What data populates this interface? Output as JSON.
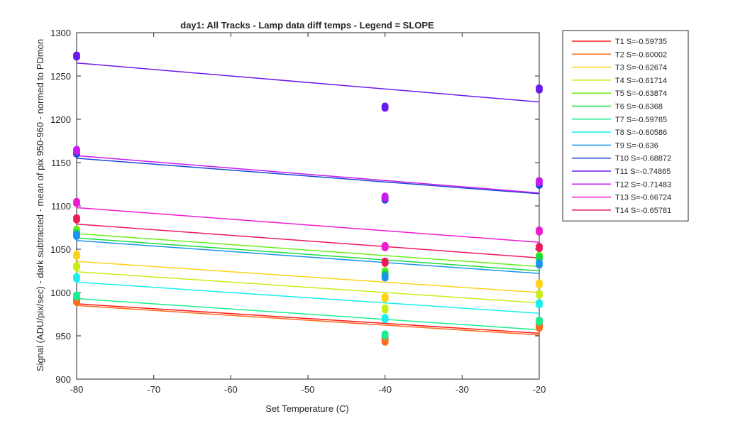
{
  "chart_data": {
    "type": "scatter",
    "title": "day1: All Tracks - Lamp data diff temps - Legend = SLOPE",
    "xlabel": "Set Temperature (C)",
    "ylabel": "Signal (ADU/pix/sec) - dark subtracted - mean of pix 950-960 - normed to PDmon",
    "xlim": [
      -80,
      -20
    ],
    "ylim": [
      900,
      1300
    ],
    "xticks": [
      "-80",
      "-70",
      "-60",
      "-50",
      "-40",
      "-30",
      "-20"
    ],
    "yticks": [
      "900",
      "950",
      "1000",
      "1050",
      "1100",
      "1150",
      "1200",
      "1250",
      "1300"
    ],
    "grid": false,
    "legend_position": "outside-right-top",
    "x": [
      -80,
      -40,
      -20
    ],
    "series": [
      {
        "name": "T1 S=-0.59735",
        "color": "#ff1a1a",
        "values": [
          991,
          947,
          962
        ],
        "fit": [
          987,
          953
        ]
      },
      {
        "name": "T2 S=-0.60002",
        "color": "#ff6a1a",
        "values": [
          990,
          944,
          960
        ],
        "fit": [
          985,
          951
        ]
      },
      {
        "name": "T3 S=-0.62674",
        "color": "#ffd21a",
        "values": [
          1043,
          994,
          1010
        ],
        "fit": [
          1036,
          1000
        ]
      },
      {
        "name": "T4 S=-0.61714",
        "color": "#c8ee1a",
        "values": [
          1030,
          981,
          998
        ],
        "fit": [
          1024,
          988
        ]
      },
      {
        "name": "T5 S=-0.63874",
        "color": "#6aee1a",
        "values": [
          1072,
          1024,
          1042
        ],
        "fit": [
          1068,
          1030
        ]
      },
      {
        "name": "T6 S=-0.6368",
        "color": "#1ada40",
        "values": [
          1068,
          1021,
          1040
        ],
        "fit": [
          1063,
          1025
        ]
      },
      {
        "name": "T7 S=-0.59765",
        "color": "#1aee90",
        "values": [
          996,
          951,
          967
        ],
        "fit": [
          993,
          957
        ]
      },
      {
        "name": "T8 S=-0.60586",
        "color": "#1aeeee",
        "values": [
          1017,
          970,
          987
        ],
        "fit": [
          1012,
          976
        ]
      },
      {
        "name": "T9 S=-0.636",
        "color": "#1a94ee",
        "values": [
          1066,
          1018,
          1033
        ],
        "fit": [
          1060,
          1022
        ]
      },
      {
        "name": "T10 S=-0.68872",
        "color": "#1a46d6",
        "values": [
          1161,
          1108,
          1125
        ],
        "fit": [
          1155,
          1114
        ]
      },
      {
        "name": "T11 S=-0.74865",
        "color": "#6a1aee",
        "values": [
          1273,
          1214,
          1235
        ],
        "fit": [
          1265,
          1220
        ]
      },
      {
        "name": "T12 S=-0.71483",
        "color": "#c81aee",
        "values": [
          1164,
          1110,
          1128
        ],
        "fit": [
          1158,
          1115
        ]
      },
      {
        "name": "T13 S=-0.66724",
        "color": "#ee1ad2",
        "values": [
          1104,
          1053,
          1071
        ],
        "fit": [
          1098,
          1058
        ]
      },
      {
        "name": "T14 S=-0.65781",
        "color": "#ee1a5a",
        "values": [
          1085,
          1035,
          1052
        ],
        "fit": [
          1079,
          1040
        ]
      }
    ]
  }
}
